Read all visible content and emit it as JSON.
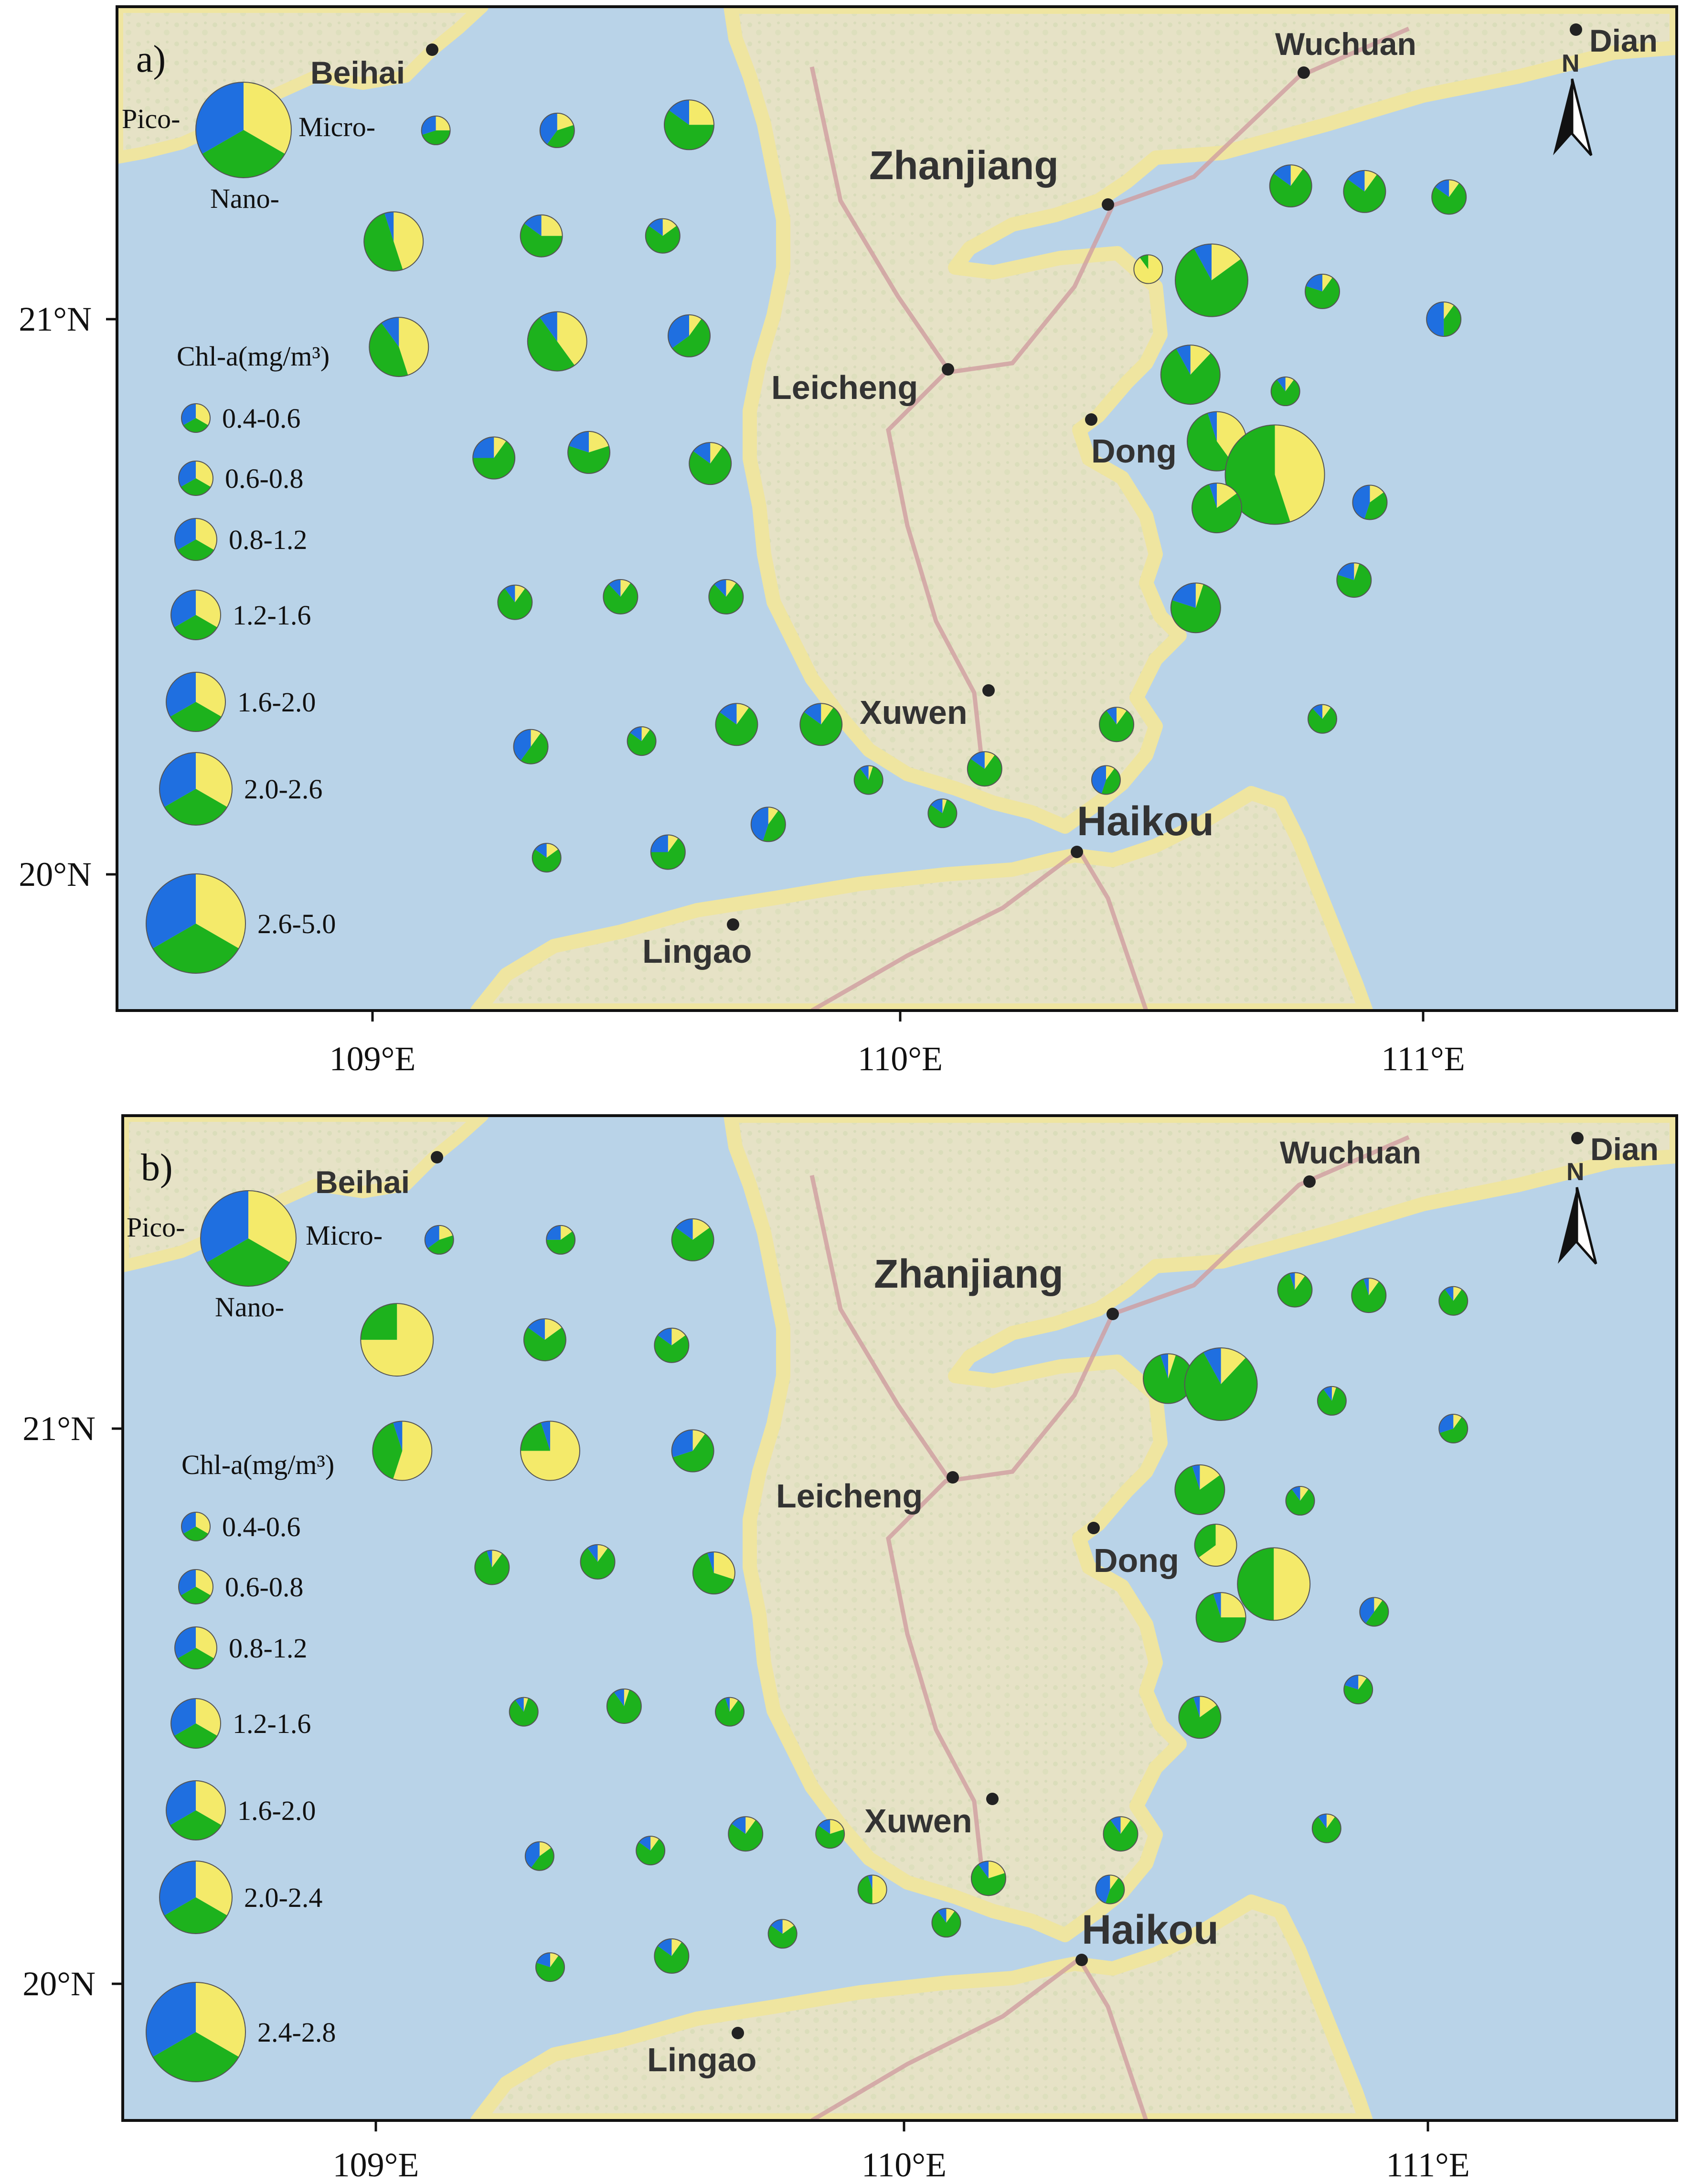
{
  "colors": {
    "pico": "#1f6fe0",
    "nano": "#1db21d",
    "micro": "#f4ea6a",
    "sea": "#b9d3e8",
    "land": "#e8e4c9",
    "coast": "#efe5a0",
    "road": "#cf9da0"
  },
  "axes": {
    "x_ticks": [
      "109°E",
      "110°E",
      "111°E"
    ],
    "y_ticks": [
      "21°N",
      "20°N"
    ]
  },
  "north_arrow": {
    "label": "N",
    "icon": "north-arrow-icon"
  },
  "places": {
    "beihai": "Beihai",
    "wuchuan": "Wuchuan",
    "dian": "Dian",
    "zhanjiang": "Zhanjiang",
    "leicheng": "Leicheng",
    "dong": "Dong",
    "xuwen": "Xuwen",
    "haikou": "Haikou",
    "lingao": "Lingao"
  },
  "legend_key": {
    "pico": "Pico-",
    "micro": "Micro-",
    "nano": "Nano-"
  },
  "legend_title": "Chl-a(mg/m³)",
  "panels": [
    {
      "label": "a)",
      "size_classes": [
        "0.4-0.6",
        "0.6-0.8",
        "0.8-1.2",
        "1.2-1.6",
        "1.6-2.0",
        "2.0-2.6",
        "2.6-5.0"
      ],
      "stations": [
        {
          "lon": 109.12,
          "lat": 21.34,
          "cls": 0,
          "pico": 0.3,
          "nano": 0.45,
          "micro": 0.25
        },
        {
          "lon": 109.35,
          "lat": 21.34,
          "cls": 1,
          "pico": 0.4,
          "nano": 0.4,
          "micro": 0.2
        },
        {
          "lon": 109.6,
          "lat": 21.35,
          "cls": 3,
          "pico": 0.15,
          "nano": 0.6,
          "micro": 0.25
        },
        {
          "lon": 109.04,
          "lat": 21.14,
          "cls": 4,
          "pico": 0.05,
          "nano": 0.5,
          "micro": 0.45
        },
        {
          "lon": 109.32,
          "lat": 21.15,
          "cls": 2,
          "pico": 0.15,
          "nano": 0.6,
          "micro": 0.25
        },
        {
          "lon": 109.55,
          "lat": 21.15,
          "cls": 1,
          "pico": 0.15,
          "nano": 0.7,
          "micro": 0.15
        },
        {
          "lon": 109.05,
          "lat": 20.95,
          "cls": 4,
          "pico": 0.1,
          "nano": 0.45,
          "micro": 0.45
        },
        {
          "lon": 109.35,
          "lat": 20.96,
          "cls": 4,
          "pico": 0.1,
          "nano": 0.5,
          "micro": 0.4
        },
        {
          "lon": 109.6,
          "lat": 20.97,
          "cls": 2,
          "pico": 0.35,
          "nano": 0.55,
          "micro": 0.1
        },
        {
          "lon": 109.23,
          "lat": 20.75,
          "cls": 2,
          "pico": 0.25,
          "nano": 0.65,
          "micro": 0.1
        },
        {
          "lon": 109.41,
          "lat": 20.76,
          "cls": 2,
          "pico": 0.2,
          "nano": 0.6,
          "micro": 0.2
        },
        {
          "lon": 109.64,
          "lat": 20.74,
          "cls": 2,
          "pico": 0.15,
          "nano": 0.75,
          "micro": 0.1
        },
        {
          "lon": 109.27,
          "lat": 20.49,
          "cls": 1,
          "pico": 0.1,
          "nano": 0.8,
          "micro": 0.1
        },
        {
          "lon": 109.47,
          "lat": 20.5,
          "cls": 1,
          "pico": 0.12,
          "nano": 0.78,
          "micro": 0.1
        },
        {
          "lon": 109.67,
          "lat": 20.5,
          "cls": 1,
          "pico": 0.12,
          "nano": 0.78,
          "micro": 0.1
        },
        {
          "lon": 109.3,
          "lat": 20.23,
          "cls": 1,
          "pico": 0.4,
          "nano": 0.5,
          "micro": 0.1
        },
        {
          "lon": 109.51,
          "lat": 20.24,
          "cls": 0,
          "pico": 0.15,
          "nano": 0.75,
          "micro": 0.1
        },
        {
          "lon": 109.69,
          "lat": 20.27,
          "cls": 2,
          "pico": 0.15,
          "nano": 0.75,
          "micro": 0.1
        },
        {
          "lon": 109.85,
          "lat": 20.27,
          "cls": 2,
          "pico": 0.15,
          "nano": 0.75,
          "micro": 0.1
        },
        {
          "lon": 109.33,
          "lat": 20.03,
          "cls": 0,
          "pico": 0.15,
          "nano": 0.7,
          "micro": 0.15
        },
        {
          "lon": 109.56,
          "lat": 20.04,
          "cls": 1,
          "pico": 0.25,
          "nano": 0.65,
          "micro": 0.1
        },
        {
          "lon": 109.75,
          "lat": 20.09,
          "cls": 1,
          "pico": 0.45,
          "nano": 0.45,
          "micro": 0.1
        },
        {
          "lon": 109.94,
          "lat": 20.17,
          "cls": 0,
          "pico": 0.1,
          "nano": 0.85,
          "micro": 0.05
        },
        {
          "lon": 110.08,
          "lat": 20.11,
          "cls": 0,
          "pico": 0.15,
          "nano": 0.8,
          "micro": 0.05
        },
        {
          "lon": 110.16,
          "lat": 20.19,
          "cls": 1,
          "pico": 0.15,
          "nano": 0.75,
          "micro": 0.1
        },
        {
          "lon": 110.39,
          "lat": 20.17,
          "cls": 0,
          "pico": 0.45,
          "nano": 0.45,
          "micro": 0.1
        },
        {
          "lon": 110.41,
          "lat": 20.27,
          "cls": 1,
          "pico": 0.1,
          "nano": 0.8,
          "micro": 0.1
        },
        {
          "lon": 110.74,
          "lat": 21.24,
          "cls": 2,
          "pico": 0.15,
          "nano": 0.75,
          "micro": 0.1
        },
        {
          "lon": 110.88,
          "lat": 21.23,
          "cls": 2,
          "pico": 0.15,
          "nano": 0.75,
          "micro": 0.1
        },
        {
          "lon": 111.04,
          "lat": 21.22,
          "cls": 1,
          "pico": 0.15,
          "nano": 0.75,
          "micro": 0.1
        },
        {
          "lon": 110.47,
          "lat": 21.09,
          "cls": 0,
          "pico": 0.0,
          "nano": 0.1,
          "micro": 0.9
        },
        {
          "lon": 110.59,
          "lat": 21.07,
          "cls": 5,
          "pico": 0.08,
          "nano": 0.77,
          "micro": 0.15
        },
        {
          "lon": 110.8,
          "lat": 21.05,
          "cls": 1,
          "pico": 0.2,
          "nano": 0.7,
          "micro": 0.1
        },
        {
          "lon": 111.03,
          "lat": 21.0,
          "cls": 1,
          "pico": 0.5,
          "nano": 0.4,
          "micro": 0.1
        },
        {
          "lon": 110.55,
          "lat": 20.9,
          "cls": 4,
          "pico": 0.08,
          "nano": 0.8,
          "micro": 0.12
        },
        {
          "lon": 110.73,
          "lat": 20.87,
          "cls": 0,
          "pico": 0.1,
          "nano": 0.8,
          "micro": 0.1
        },
        {
          "lon": 110.6,
          "lat": 20.78,
          "cls": 4,
          "pico": 0.05,
          "nano": 0.55,
          "micro": 0.4
        },
        {
          "lon": 110.71,
          "lat": 20.72,
          "cls": 6,
          "pico": 0.0,
          "nano": 0.55,
          "micro": 0.45
        },
        {
          "lon": 110.6,
          "lat": 20.66,
          "cls": 3,
          "pico": 0.05,
          "nano": 0.8,
          "micro": 0.15
        },
        {
          "lon": 110.89,
          "lat": 20.67,
          "cls": 1,
          "pico": 0.45,
          "nano": 0.4,
          "micro": 0.15
        },
        {
          "lon": 110.56,
          "lat": 20.48,
          "cls": 3,
          "pico": 0.2,
          "nano": 0.75,
          "micro": 0.05
        },
        {
          "lon": 110.86,
          "lat": 20.53,
          "cls": 1,
          "pico": 0.2,
          "nano": 0.75,
          "micro": 0.05
        },
        {
          "lon": 110.8,
          "lat": 20.28,
          "cls": 0,
          "pico": 0.12,
          "nano": 0.78,
          "micro": 0.1
        }
      ]
    },
    {
      "label": "b)",
      "size_classes": [
        "0.4-0.6",
        "0.6-0.8",
        "0.8-1.2",
        "1.2-1.6",
        "1.6-2.0",
        "2.0-2.4",
        "2.4-2.8"
      ],
      "stations": [
        {
          "lon": 109.12,
          "lat": 21.34,
          "cls": 0,
          "pico": 0.35,
          "nano": 0.45,
          "micro": 0.2
        },
        {
          "lon": 109.35,
          "lat": 21.34,
          "cls": 0,
          "pico": 0.25,
          "nano": 0.6,
          "micro": 0.15
        },
        {
          "lon": 109.6,
          "lat": 21.34,
          "cls": 2,
          "pico": 0.15,
          "nano": 0.7,
          "micro": 0.15
        },
        {
          "lon": 109.04,
          "lat": 21.16,
          "cls": 5,
          "pico": 0.0,
          "nano": 0.25,
          "micro": 0.75
        },
        {
          "lon": 109.32,
          "lat": 21.16,
          "cls": 2,
          "pico": 0.15,
          "nano": 0.7,
          "micro": 0.15
        },
        {
          "lon": 109.56,
          "lat": 21.15,
          "cls": 1,
          "pico": 0.15,
          "nano": 0.7,
          "micro": 0.15
        },
        {
          "lon": 109.05,
          "lat": 20.96,
          "cls": 4,
          "pico": 0.05,
          "nano": 0.4,
          "micro": 0.55
        },
        {
          "lon": 109.33,
          "lat": 20.96,
          "cls": 4,
          "pico": 0.05,
          "nano": 0.2,
          "micro": 0.75
        },
        {
          "lon": 109.6,
          "lat": 20.96,
          "cls": 2,
          "pico": 0.3,
          "nano": 0.6,
          "micro": 0.1
        },
        {
          "lon": 109.22,
          "lat": 20.75,
          "cls": 1,
          "pico": 0.05,
          "nano": 0.85,
          "micro": 0.1
        },
        {
          "lon": 109.42,
          "lat": 20.76,
          "cls": 1,
          "pico": 0.1,
          "nano": 0.8,
          "micro": 0.1
        },
        {
          "lon": 109.64,
          "lat": 20.74,
          "cls": 2,
          "pico": 0.05,
          "nano": 0.65,
          "micro": 0.3
        },
        {
          "lon": 109.28,
          "lat": 20.49,
          "cls": 0,
          "pico": 0.1,
          "nano": 0.85,
          "micro": 0.05
        },
        {
          "lon": 109.47,
          "lat": 20.5,
          "cls": 1,
          "pico": 0.1,
          "nano": 0.85,
          "micro": 0.05
        },
        {
          "lon": 109.67,
          "lat": 20.49,
          "cls": 0,
          "pico": 0.05,
          "nano": 0.85,
          "micro": 0.1
        },
        {
          "lon": 109.31,
          "lat": 20.23,
          "cls": 0,
          "pico": 0.4,
          "nano": 0.45,
          "micro": 0.15
        },
        {
          "lon": 109.52,
          "lat": 20.24,
          "cls": 0,
          "pico": 0.15,
          "nano": 0.75,
          "micro": 0.1
        },
        {
          "lon": 109.7,
          "lat": 20.27,
          "cls": 1,
          "pico": 0.15,
          "nano": 0.75,
          "micro": 0.1
        },
        {
          "lon": 109.86,
          "lat": 20.27,
          "cls": 0,
          "pico": 0.15,
          "nano": 0.65,
          "micro": 0.2
        },
        {
          "lon": 109.33,
          "lat": 20.03,
          "cls": 0,
          "pico": 0.2,
          "nano": 0.7,
          "micro": 0.1
        },
        {
          "lon": 109.56,
          "lat": 20.05,
          "cls": 1,
          "pico": 0.15,
          "nano": 0.75,
          "micro": 0.1
        },
        {
          "lon": 109.77,
          "lat": 20.09,
          "cls": 0,
          "pico": 0.15,
          "nano": 0.7,
          "micro": 0.15
        },
        {
          "lon": 109.94,
          "lat": 20.17,
          "cls": 0,
          "pico": 0.05,
          "nano": 0.45,
          "micro": 0.5
        },
        {
          "lon": 110.08,
          "lat": 20.11,
          "cls": 0,
          "pico": 0.1,
          "nano": 0.8,
          "micro": 0.1
        },
        {
          "lon": 110.16,
          "lat": 20.19,
          "cls": 1,
          "pico": 0.1,
          "nano": 0.7,
          "micro": 0.2
        },
        {
          "lon": 110.39,
          "lat": 20.17,
          "cls": 0,
          "pico": 0.45,
          "nano": 0.45,
          "micro": 0.1
        },
        {
          "lon": 110.41,
          "lat": 20.27,
          "cls": 1,
          "pico": 0.1,
          "nano": 0.8,
          "micro": 0.1
        },
        {
          "lon": 110.74,
          "lat": 21.25,
          "cls": 1,
          "pico": 0.05,
          "nano": 0.85,
          "micro": 0.1
        },
        {
          "lon": 110.88,
          "lat": 21.24,
          "cls": 1,
          "pico": 0.05,
          "nano": 0.85,
          "micro": 0.1
        },
        {
          "lon": 111.04,
          "lat": 21.23,
          "cls": 0,
          "pico": 0.1,
          "nano": 0.8,
          "micro": 0.1
        },
        {
          "lon": 110.5,
          "lat": 21.09,
          "cls": 3,
          "pico": 0.05,
          "nano": 0.9,
          "micro": 0.05
        },
        {
          "lon": 110.6,
          "lat": 21.08,
          "cls": 5,
          "pico": 0.08,
          "nano": 0.8,
          "micro": 0.12
        },
        {
          "lon": 110.81,
          "lat": 21.05,
          "cls": 0,
          "pico": 0.1,
          "nano": 0.85,
          "micro": 0.05
        },
        {
          "lon": 111.04,
          "lat": 21.0,
          "cls": 0,
          "pico": 0.3,
          "nano": 0.6,
          "micro": 0.1
        },
        {
          "lon": 110.56,
          "lat": 20.89,
          "cls": 3,
          "pico": 0.05,
          "nano": 0.8,
          "micro": 0.15
        },
        {
          "lon": 110.75,
          "lat": 20.87,
          "cls": 0,
          "pico": 0.1,
          "nano": 0.8,
          "micro": 0.1
        },
        {
          "lon": 110.59,
          "lat": 20.79,
          "cls": 2,
          "pico": 0.0,
          "nano": 0.35,
          "micro": 0.65
        },
        {
          "lon": 110.7,
          "lat": 20.72,
          "cls": 5,
          "pico": 0.0,
          "nano": 0.5,
          "micro": 0.5
        },
        {
          "lon": 110.6,
          "lat": 20.66,
          "cls": 3,
          "pico": 0.05,
          "nano": 0.7,
          "micro": 0.25
        },
        {
          "lon": 110.89,
          "lat": 20.67,
          "cls": 0,
          "pico": 0.4,
          "nano": 0.5,
          "micro": 0.1
        },
        {
          "lon": 110.56,
          "lat": 20.48,
          "cls": 2,
          "pico": 0.05,
          "nano": 0.8,
          "micro": 0.15
        },
        {
          "lon": 110.86,
          "lat": 20.53,
          "cls": 0,
          "pico": 0.2,
          "nano": 0.7,
          "micro": 0.1
        },
        {
          "lon": 110.8,
          "lat": 20.28,
          "cls": 0,
          "pico": 0.1,
          "nano": 0.8,
          "micro": 0.1
        }
      ]
    }
  ]
}
